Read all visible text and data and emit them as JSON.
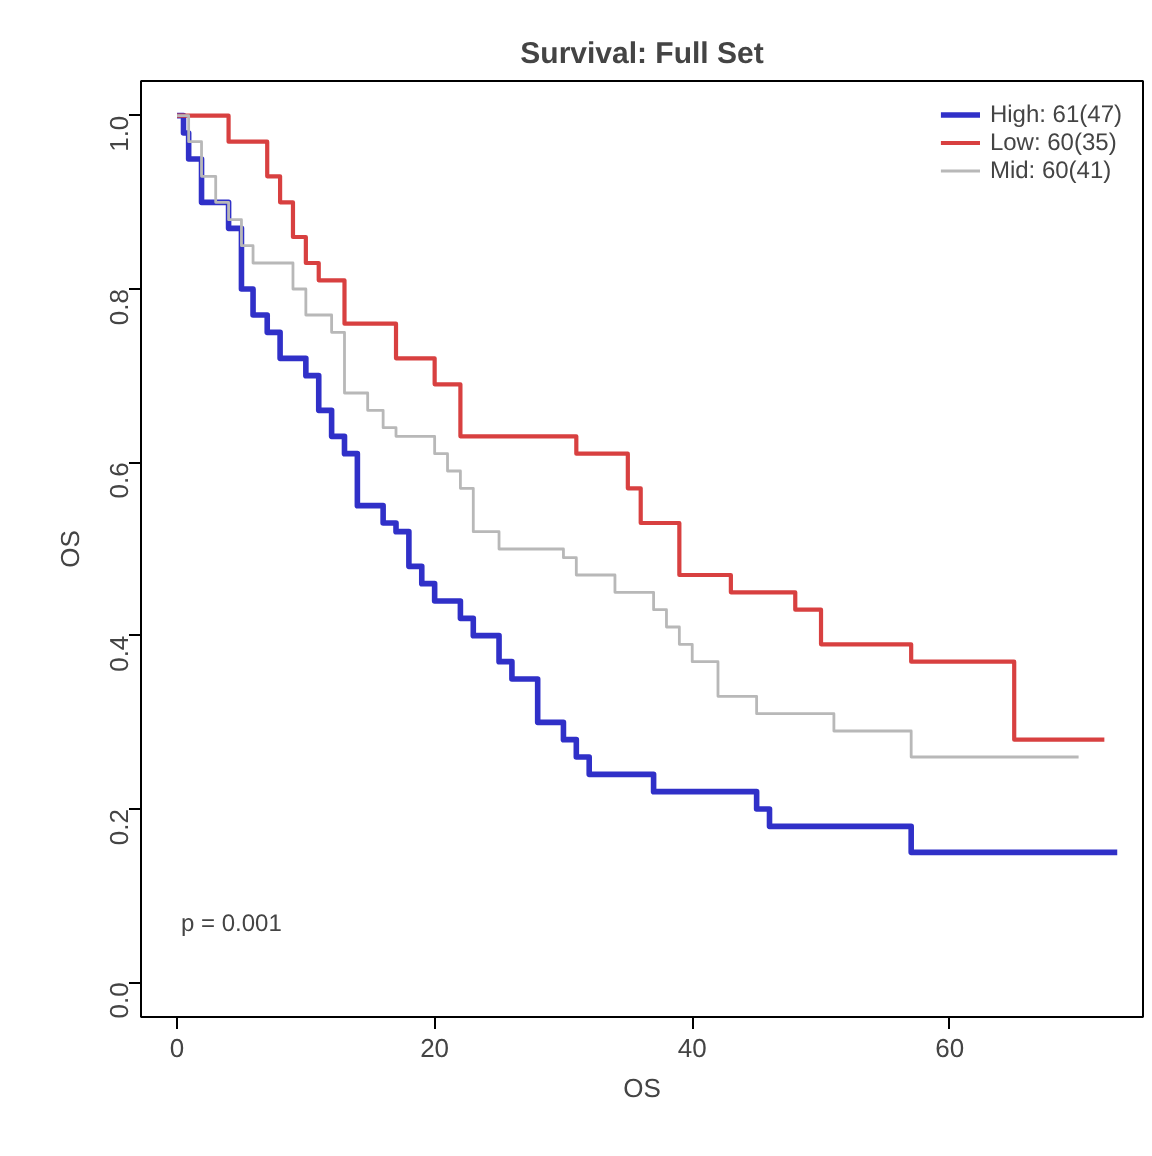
{
  "chart_data": {
    "type": "step",
    "title": "Survival: Full Set",
    "xlabel": "OS",
    "ylabel": "OS",
    "xlim": [
      -2.8,
      75
    ],
    "ylim": [
      -0.04,
      1.04
    ],
    "xticks": [
      0,
      20,
      40,
      60
    ],
    "yticks": [
      {
        "value": 0,
        "label": "0.0"
      },
      0.2,
      0.4,
      0.6,
      0.8,
      {
        "value": 1,
        "label": "1.0"
      }
    ],
    "grid": false,
    "legend": "top right",
    "marker": "none",
    "line_style": "solid",
    "annotations": [
      "p = 0.001"
    ],
    "series": [
      {
        "name": "High: 61(47)",
        "color": "#3030c8",
        "x": [
          0,
          0.5,
          0.9,
          1.9,
          4,
          5,
          5.9,
          7,
          8,
          10,
          11,
          12,
          13,
          14,
          16,
          17,
          18,
          19,
          20,
          22,
          23,
          25,
          26,
          28,
          30,
          31,
          32,
          37,
          45,
          46,
          57,
          73
        ],
        "values": [
          1.0,
          0.98,
          0.95,
          0.9,
          0.87,
          0.8,
          0.77,
          0.75,
          0.72,
          0.7,
          0.66,
          0.63,
          0.61,
          0.55,
          0.53,
          0.52,
          0.48,
          0.46,
          0.44,
          0.42,
          0.4,
          0.37,
          0.35,
          0.3,
          0.28,
          0.26,
          0.24,
          0.22,
          0.2,
          0.18,
          0.15,
          0.15
        ]
      },
      {
        "name": "Low: 60(35)",
        "color": "#d84040",
        "x": [
          0,
          4,
          7,
          8,
          9,
          10,
          11,
          13,
          17,
          20,
          22,
          31,
          35,
          36,
          39,
          43,
          48,
          50,
          57,
          65,
          72
        ],
        "values": [
          1.0,
          0.97,
          0.93,
          0.9,
          0.86,
          0.83,
          0.81,
          0.76,
          0.72,
          0.69,
          0.63,
          0.61,
          0.57,
          0.53,
          0.47,
          0.45,
          0.43,
          0.39,
          0.37,
          0.28,
          0.28
        ]
      },
      {
        "name": "Mid: 60(41)",
        "color": "#b8b8b8",
        "x": [
          0,
          0.9,
          1.9,
          3,
          4,
          5,
          5.9,
          9,
          10,
          12,
          13,
          14.8,
          16,
          17,
          20,
          21,
          22,
          23,
          25,
          30,
          31,
          34,
          37,
          38,
          39,
          40,
          42,
          45,
          51,
          57,
          70
        ],
        "values": [
          1.0,
          0.97,
          0.93,
          0.9,
          0.88,
          0.85,
          0.83,
          0.8,
          0.77,
          0.75,
          0.68,
          0.66,
          0.64,
          0.63,
          0.61,
          0.59,
          0.57,
          0.52,
          0.5,
          0.49,
          0.47,
          0.45,
          0.43,
          0.41,
          0.39,
          0.37,
          0.33,
          0.31,
          0.29,
          0.26,
          0.26
        ]
      }
    ]
  }
}
